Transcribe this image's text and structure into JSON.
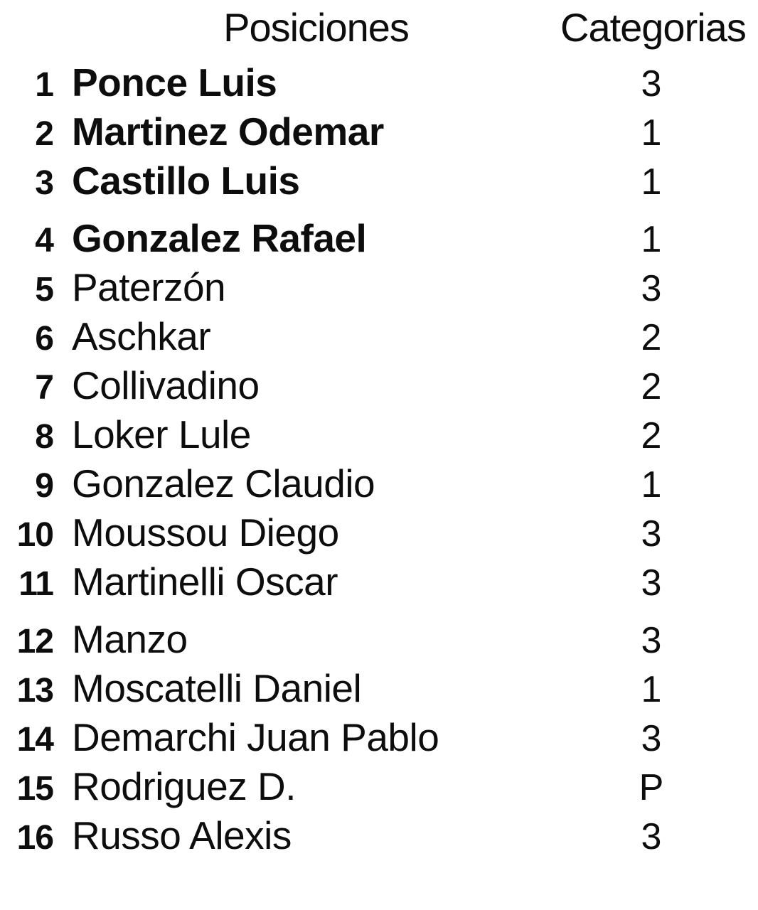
{
  "page": {
    "background_color": "#ffffff",
    "text_color": "#0d0d0d"
  },
  "table": {
    "header": {
      "positions_label": "Posiciones",
      "categories_label": "Categorias"
    },
    "rows": [
      {
        "rank": "1",
        "name": "Ponce Luis",
        "category": "3",
        "bold": true
      },
      {
        "rank": "2",
        "name": "Martinez Odemar",
        "category": "1",
        "bold": true
      },
      {
        "rank": "3",
        "name": "Castillo Luis",
        "category": "1",
        "bold": true
      },
      {
        "rank": "4",
        "name": "Gonzalez Rafael",
        "category": "1",
        "bold": true
      },
      {
        "rank": "5",
        "name": "Paterzón",
        "category": "3",
        "bold": false
      },
      {
        "rank": "6",
        "name": "Aschkar",
        "category": "2",
        "bold": false
      },
      {
        "rank": "7",
        "name": "Collivadino",
        "category": "2",
        "bold": false
      },
      {
        "rank": "8",
        "name": "Loker Lule",
        "category": "2",
        "bold": false
      },
      {
        "rank": "9",
        "name": "Gonzalez Claudio",
        "category": "1",
        "bold": false
      },
      {
        "rank": "10",
        "name": "Moussou Diego",
        "category": "3",
        "bold": false
      },
      {
        "rank": "11",
        "name": "Martinelli Oscar",
        "category": "3",
        "bold": false
      },
      {
        "rank": "12",
        "name": "Manzo",
        "category": "3",
        "bold": false
      },
      {
        "rank": "13",
        "name": "Moscatelli Daniel",
        "category": "1",
        "bold": false
      },
      {
        "rank": "14",
        "name": "Demarchi Juan Pablo",
        "category": "3",
        "bold": false
      },
      {
        "rank": "15",
        "name": "Rodriguez D.",
        "category": "P",
        "bold": false
      },
      {
        "rank": "16",
        "name": "Russo Alexis",
        "category": "3",
        "bold": false
      }
    ]
  }
}
